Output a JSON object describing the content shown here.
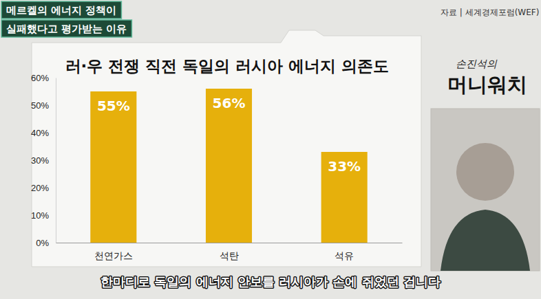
{
  "chart_data": {
    "type": "bar",
    "title": "러·우 전쟁 직전 독일의 러시아 에너지 의존도",
    "categories": [
      "천연가스",
      "석탄",
      "석유"
    ],
    "values": [
      55,
      56,
      33
    ],
    "value_labels": [
      "55%",
      "56%",
      "33%"
    ],
    "color": "#e6b00c",
    "ylim": [
      0,
      60
    ],
    "yticks": [
      {
        "value": 0,
        "label": "0%"
      },
      {
        "value": 10,
        "label": "10%"
      },
      {
        "value": 20,
        "label": "20%"
      },
      {
        "value": 30,
        "label": "30%"
      },
      {
        "value": 40,
        "label": "40%"
      },
      {
        "value": 50,
        "label": "50%"
      },
      {
        "value": 60,
        "label": "60%"
      }
    ],
    "grid": false,
    "data_labels": true
  },
  "header": [
    "메르켈의 에너지 정책이",
    "실패했다고 평가받는 이유"
  ],
  "source": "자료 | 세계경제포럼(WEF)",
  "logo": [
    "손진석의",
    "머니워치"
  ],
  "caption": "한마디로 독일의 에너지 안보를 러시아가 손에 쥐었던 겁니다"
}
